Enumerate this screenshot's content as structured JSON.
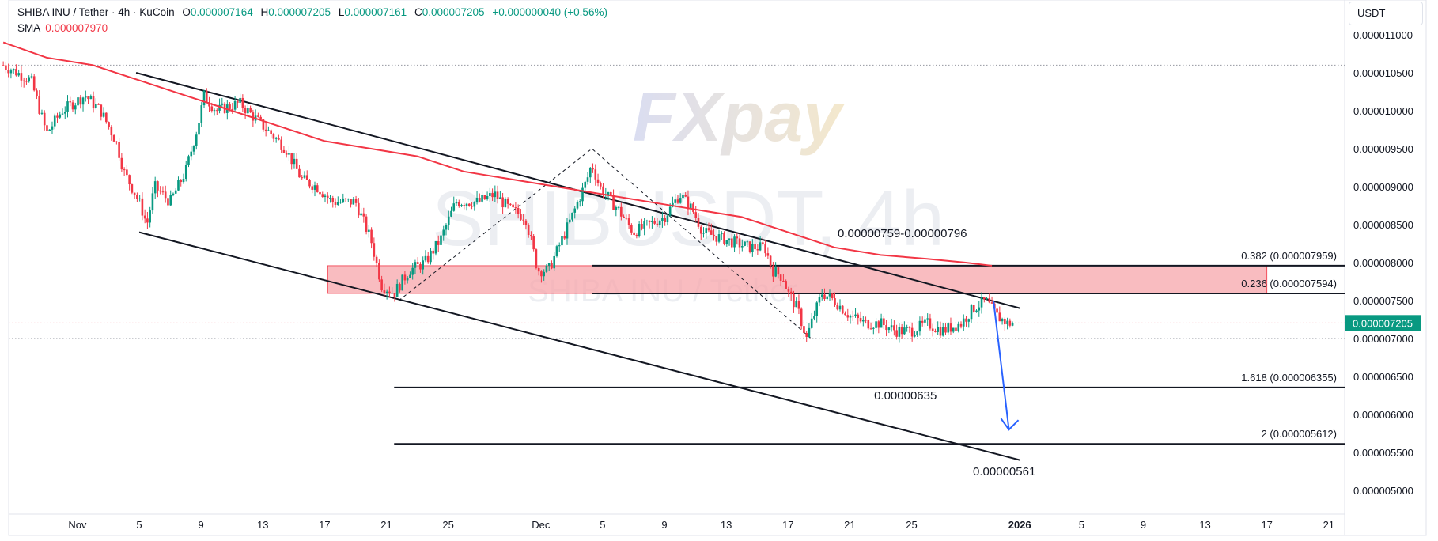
{
  "header": {
    "symbol": "SHIBA INU / Tether · 4h · KuCoin",
    "o_label": "O",
    "o_value": "0.000007164",
    "h_label": "H",
    "h_value": "0.000007205",
    "l_label": "L",
    "l_value": "0.000007161",
    "c_label": "C",
    "c_value": "0.000007205",
    "change": "+0.000000040 (+0.56%)",
    "sma_label": "SMA",
    "sma_value": "0.000007970"
  },
  "unit_button": "USDT",
  "watermark": {
    "ticker": "SHIBUSDT, 4h",
    "name": "SHIBA INU / Tether",
    "logo": "FXpay"
  },
  "colors": {
    "up": "#089981",
    "down": "#f23645",
    "sma": "#f23645",
    "zone": "#f7a6ab",
    "arrow": "#2962ff",
    "price_tag": "#089981"
  },
  "chart_data": {
    "type": "candlestick",
    "title": "SHIBA INU / Tether · 4h · KuCoin",
    "ylim": [
      4.8e-06,
      1.12e-05
    ],
    "y_ticks": [
      "0.000011000",
      "0.000010500",
      "0.000010000",
      "0.000009500",
      "0.000009000",
      "0.000008500",
      "0.000008000",
      "0.000007500",
      "0.000007000",
      "0.000006500",
      "0.000006000",
      "0.000005500",
      "0.000005000"
    ],
    "y_tick_values": [
      1.1e-05,
      1.05e-05,
      1e-05,
      9.5e-06,
      9e-06,
      8.5e-06,
      8e-06,
      7.5e-06,
      7e-06,
      6.5e-06,
      6e-06,
      5.5e-06,
      5e-06
    ],
    "x_ticks": [
      {
        "label": "Nov",
        "day": -4
      },
      {
        "label": "5",
        "day": 0
      },
      {
        "label": "9",
        "day": 4
      },
      {
        "label": "13",
        "day": 8
      },
      {
        "label": "17",
        "day": 12
      },
      {
        "label": "21",
        "day": 16
      },
      {
        "label": "25",
        "day": 20
      },
      {
        "label": "Dec",
        "day": 26
      },
      {
        "label": "5",
        "day": 30
      },
      {
        "label": "9",
        "day": 34
      },
      {
        "label": "13",
        "day": 38
      },
      {
        "label": "17",
        "day": 42
      },
      {
        "label": "21",
        "day": 46
      },
      {
        "label": "25",
        "day": 50
      },
      {
        "label": "2026",
        "day": 57
      },
      {
        "label": "5",
        "day": 61
      },
      {
        "label": "9",
        "day": 65
      },
      {
        "label": "13",
        "day": 69
      },
      {
        "label": "17",
        "day": 73
      },
      {
        "label": "21",
        "day": 77
      }
    ],
    "x_unit": "days since Nov 5",
    "series_path": [
      [
        -8.8,
        1.06e-05
      ],
      [
        -7,
        1.04e-05
      ],
      [
        -6,
        9.7e-06
      ],
      [
        -5,
        1e-05
      ],
      [
        -3.5,
        1.02e-05
      ],
      [
        -2.5,
        1e-05
      ],
      [
        -1.5,
        9.6e-06
      ],
      [
        -1,
        9.2e-06
      ],
      [
        0,
        8.8e-06
      ],
      [
        0.5,
        8.5e-06
      ],
      [
        1,
        9e-06
      ],
      [
        2,
        8.8e-06
      ],
      [
        3,
        9.2e-06
      ],
      [
        3.8,
        9.8e-06
      ],
      [
        4.2,
        1.02e-05
      ],
      [
        5,
        1e-05
      ],
      [
        6.5,
        1.01e-05
      ],
      [
        7.5,
        9.9e-06
      ],
      [
        8.5,
        9.7e-06
      ],
      [
        9.5,
        9.5e-06
      ],
      [
        10.5,
        9.1e-06
      ],
      [
        11.5,
        9e-06
      ],
      [
        12.5,
        8.8e-06
      ],
      [
        14,
        8.8e-06
      ],
      [
        15,
        8.3e-06
      ],
      [
        15.7,
        7.7e-06
      ],
      [
        16.5,
        7.6e-06
      ],
      [
        17.5,
        7.9e-06
      ],
      [
        18.5,
        8e-06
      ],
      [
        19.5,
        8.3e-06
      ],
      [
        20.5,
        8.8e-06
      ],
      [
        22,
        8.8e-06
      ],
      [
        23,
        8.9e-06
      ],
      [
        24,
        8.7e-06
      ],
      [
        25,
        8.6e-06
      ],
      [
        25.8,
        7.9e-06
      ],
      [
        26.5,
        7.9e-06
      ],
      [
        28,
        8.6e-06
      ],
      [
        29,
        9.1e-06
      ],
      [
        29.3,
        9.3e-06
      ],
      [
        29.8,
        9e-06
      ],
      [
        31,
        8.7e-06
      ],
      [
        32,
        8.4e-06
      ],
      [
        33,
        8.5e-06
      ],
      [
        34,
        8.6e-06
      ],
      [
        35,
        8.9e-06
      ],
      [
        35.8,
        8.7e-06
      ],
      [
        36.5,
        8.4e-06
      ],
      [
        38,
        8.3e-06
      ],
      [
        39.5,
        8.2e-06
      ],
      [
        40.5,
        8.2e-06
      ],
      [
        41,
        7.9e-06
      ],
      [
        41.7,
        7.8e-06
      ],
      [
        42,
        7.6e-06
      ],
      [
        42.6,
        7.4e-06
      ],
      [
        43.2,
        7e-06
      ],
      [
        43.5,
        7.2e-06
      ],
      [
        44.2,
        7.6e-06
      ],
      [
        45,
        7.5e-06
      ],
      [
        46,
        7.3e-06
      ],
      [
        47,
        7.2e-06
      ],
      [
        48,
        7.2e-06
      ],
      [
        49,
        7.1e-06
      ],
      [
        50,
        7.1e-06
      ],
      [
        51,
        7.2e-06
      ],
      [
        52,
        7.1e-06
      ],
      [
        53.2,
        7.2e-06
      ],
      [
        54,
        7.4e-06
      ],
      [
        54.8,
        7.5e-06
      ],
      [
        55.5,
        7.3e-06
      ],
      [
        56.2,
        7.2e-06
      ],
      [
        56.6,
        7.2e-06
      ]
    ],
    "sma_path": [
      [
        -8.8,
        1.09e-05
      ],
      [
        -6,
        1.07e-05
      ],
      [
        -3,
        1.06e-05
      ],
      [
        0,
        1.04e-05
      ],
      [
        3,
        1.02e-05
      ],
      [
        6,
        1e-05
      ],
      [
        9,
        9.8e-06
      ],
      [
        12,
        9.6e-06
      ],
      [
        15,
        9.5e-06
      ],
      [
        18,
        9.4e-06
      ],
      [
        21,
        9.2e-06
      ],
      [
        24,
        9.1e-06
      ],
      [
        27,
        9e-06
      ],
      [
        30,
        8.9e-06
      ],
      [
        33,
        8.8e-06
      ],
      [
        36,
        8.7e-06
      ],
      [
        39,
        8.6e-06
      ],
      [
        42,
        8.4e-06
      ],
      [
        45,
        8.2e-06
      ],
      [
        48,
        8.1e-06
      ],
      [
        51,
        8.05e-06
      ],
      [
        53.5,
        8e-06
      ],
      [
        55.2,
        7.959e-06
      ]
    ],
    "channel_lines": [
      {
        "from": [
          -0.2,
          1.05e-05
        ],
        "to": [
          57,
          7.4e-06
        ]
      },
      {
        "from": [
          0,
          8.4e-06
        ],
        "to": [
          57,
          5.4e-06
        ]
      }
    ],
    "dashed_triangle": [
      [
        16.8,
        7.5e-06
      ],
      [
        29.3,
        9.5e-06
      ],
      [
        43.5,
        7e-06
      ]
    ],
    "zone": {
      "x0": 12.2,
      "x1": 73,
      "y_low": 7.594e-06,
      "y_high": 7.959e-06,
      "label": "0.00000759-0.00000796"
    },
    "fib_levels": [
      {
        "label": "0.382 (0.000007959)",
        "value": 7.959e-06,
        "x0": 29.3
      },
      {
        "label": "0.236 (0.000007594)",
        "value": 7.594e-06,
        "x0": 29.3
      },
      {
        "label": "1.618 (0.000006355)",
        "value": 6.355e-06,
        "x0": 16.5
      },
      {
        "label": "2 (0.000005612)",
        "value": 5.612e-06,
        "x0": 16.5
      }
    ],
    "annotations": [
      {
        "text": "0.00000635",
        "x": 49.6,
        "y": 6.2e-06
      },
      {
        "text": "0.00000561",
        "x": 56,
        "y": 5.2e-06
      }
    ],
    "arrow": {
      "from": [
        55.3,
        7.5e-06
      ],
      "to": [
        56.3,
        5.8e-06
      ]
    },
    "dotted_lines": [
      1.06e-05,
      7e-06
    ],
    "current_price": {
      "label": "0.000007205",
      "value": 7.205e-06
    }
  }
}
